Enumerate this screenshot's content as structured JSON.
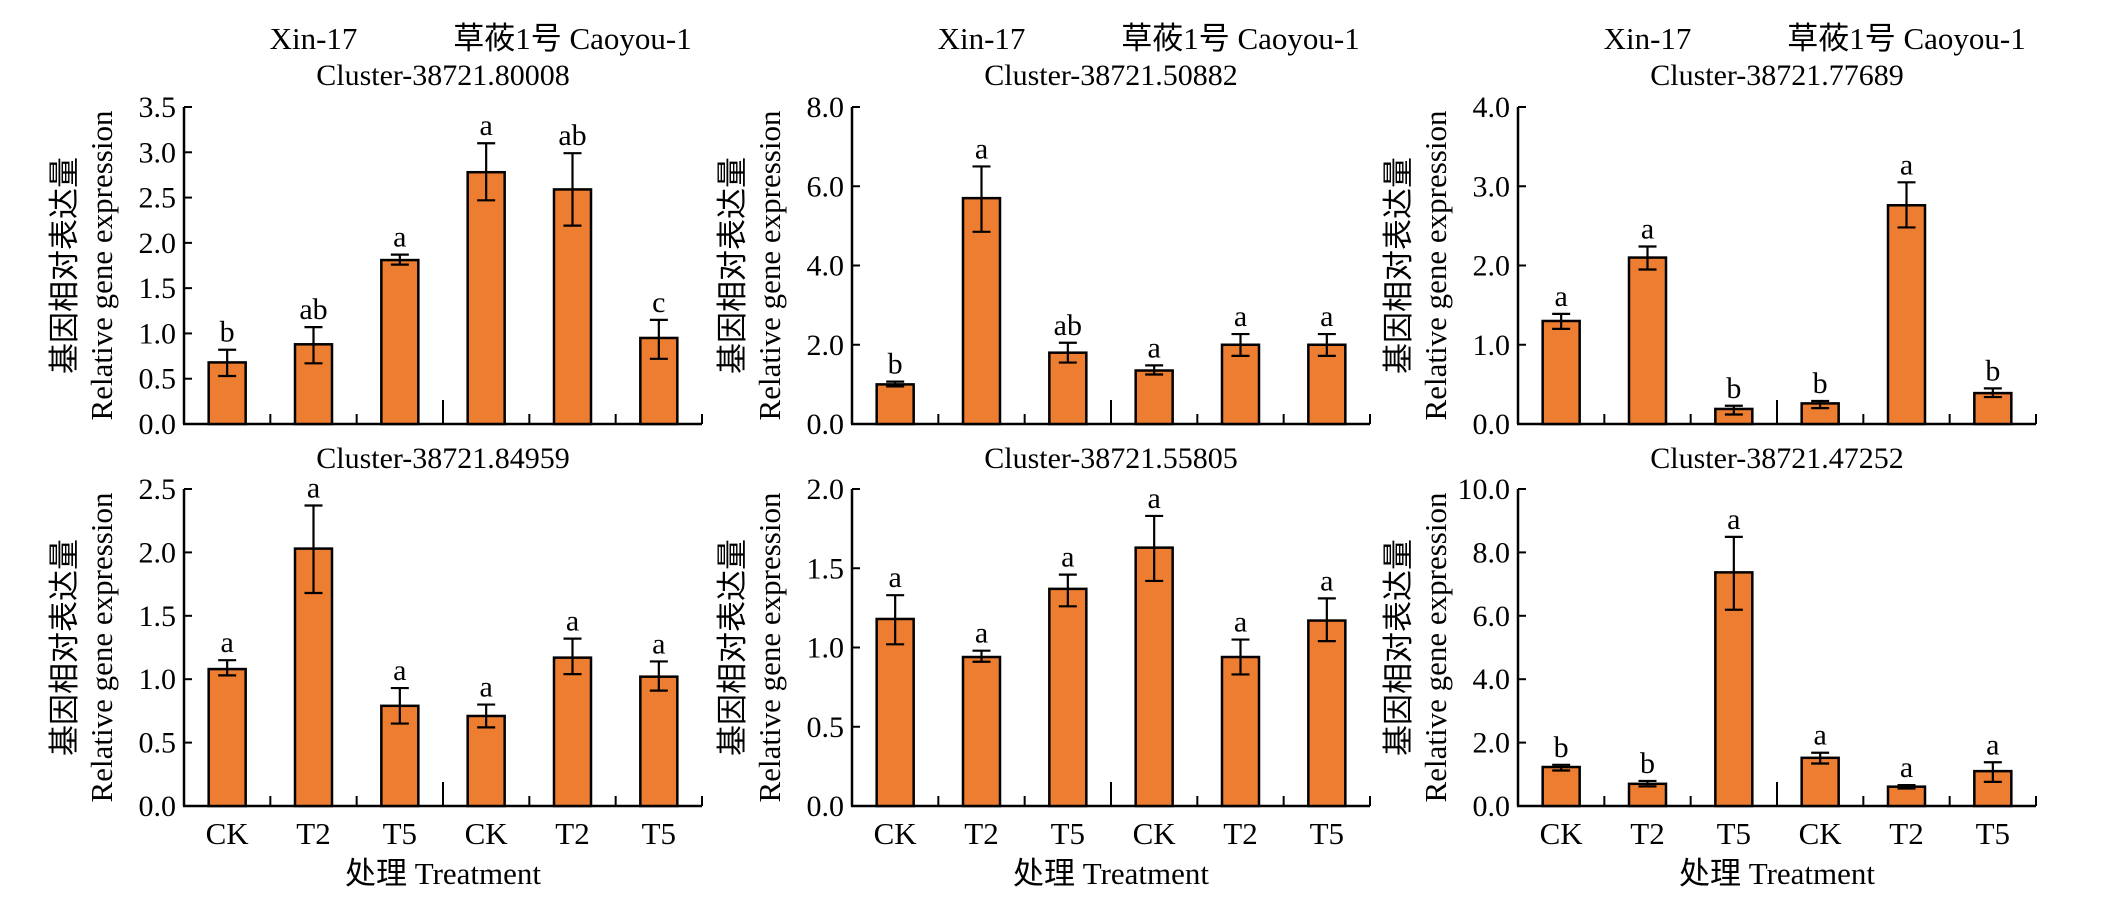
{
  "figure": {
    "group_labels": [
      "Xin-17",
      "草莜1号 Caoyou-1"
    ],
    "x_axis_title": "处理 Treatment",
    "y_axis_title_cn": "基因相对表达量",
    "y_axis_title_en": "Relative gene expression",
    "bar_color": "#ED7D31",
    "edge_color": "#000000"
  },
  "chart_data": [
    {
      "type": "bar",
      "title": "Cluster-38721.80008",
      "categories": [
        "CK",
        "T2",
        "T5",
        "CK",
        "T2",
        "T5"
      ],
      "groups": [
        "Xin-17",
        "草莜1号 Caoyou-1"
      ],
      "values": [
        0.68,
        0.88,
        1.81,
        2.78,
        2.59,
        0.95
      ],
      "error_upper": [
        0.82,
        1.07,
        1.87,
        3.1,
        2.99,
        1.15
      ],
      "error_lower": [
        0.53,
        0.67,
        1.76,
        2.47,
        2.19,
        0.72
      ],
      "significance": [
        "b",
        "ab",
        "a",
        "a",
        "ab",
        "c"
      ],
      "yticks": [
        "0.0",
        "0.5",
        "1.0",
        "1.5",
        "2.0",
        "2.5",
        "3.0",
        "3.5"
      ],
      "ylim": [
        0,
        3.5
      ],
      "xlabel": "",
      "ylabel": "基因相对表达量 Relative gene expression"
    },
    {
      "type": "bar",
      "title": "Cluster-38721.50882",
      "categories": [
        "CK",
        "T2",
        "T5",
        "CK",
        "T2",
        "T5"
      ],
      "groups": [
        "Xin-17",
        "草莜1号 Caoyou-1"
      ],
      "values": [
        1.0,
        5.7,
        1.8,
        1.35,
        2.0,
        2.0
      ],
      "error_upper": [
        1.07,
        6.5,
        2.05,
        1.48,
        2.27,
        2.27
      ],
      "error_lower": [
        0.95,
        4.85,
        1.55,
        1.25,
        1.72,
        1.72
      ],
      "significance": [
        "b",
        "a",
        "ab",
        "a",
        "a",
        "a"
      ],
      "yticks": [
        "0.0",
        "2.0",
        "4.0",
        "6.0",
        "8.0"
      ],
      "ylim": [
        0,
        8.0
      ],
      "xlabel": "",
      "ylabel": "基因相对表达量 Relative gene expression"
    },
    {
      "type": "bar",
      "title": "Cluster-38721.77689",
      "categories": [
        "CK",
        "T2",
        "T5",
        "CK",
        "T2",
        "T5"
      ],
      "groups": [
        "Xin-17",
        "草莜1号 Caoyou-1"
      ],
      "values": [
        1.3,
        2.1,
        0.19,
        0.26,
        2.76,
        0.39
      ],
      "error_upper": [
        1.39,
        2.24,
        0.23,
        0.29,
        3.05,
        0.45
      ],
      "error_lower": [
        1.2,
        1.95,
        0.12,
        0.2,
        2.48,
        0.34
      ],
      "significance": [
        "a",
        "a",
        "b",
        "b",
        "a",
        "b"
      ],
      "yticks": [
        "0.0",
        "1.0",
        "2.0",
        "3.0",
        "4.0"
      ],
      "ylim": [
        0,
        4.0
      ],
      "xlabel": "",
      "ylabel": "基因相对表达量 Relative gene expression"
    },
    {
      "type": "bar",
      "title": "Cluster-38721.84959",
      "categories": [
        "CK",
        "T2",
        "T5",
        "CK",
        "T2",
        "T5"
      ],
      "groups": [
        "Xin-17",
        "草莜1号 Caoyou-1"
      ],
      "values": [
        1.08,
        2.03,
        0.79,
        0.71,
        1.17,
        1.02
      ],
      "error_upper": [
        1.15,
        2.37,
        0.93,
        0.8,
        1.32,
        1.14
      ],
      "error_lower": [
        1.03,
        1.68,
        0.65,
        0.62,
        1.04,
        0.91
      ],
      "significance": [
        "a",
        "a",
        "a",
        "a",
        "a",
        "a"
      ],
      "yticks": [
        "0.0",
        "0.5",
        "1.0",
        "1.5",
        "2.0",
        "2.5"
      ],
      "ylim": [
        0,
        2.5
      ],
      "xlabel": "处理 Treatment",
      "ylabel": "基因相对表达量 Relative gene expression"
    },
    {
      "type": "bar",
      "title": "Cluster-38721.55805",
      "categories": [
        "CK",
        "T2",
        "T5",
        "CK",
        "T2",
        "T5"
      ],
      "groups": [
        "Xin-17",
        "草莜1号 Caoyou-1"
      ],
      "values": [
        1.18,
        0.94,
        1.37,
        1.63,
        0.94,
        1.17
      ],
      "error_upper": [
        1.33,
        0.98,
        1.46,
        1.83,
        1.05,
        1.31
      ],
      "error_lower": [
        1.02,
        0.91,
        1.26,
        1.42,
        0.83,
        1.04
      ],
      "significance": [
        "a",
        "a",
        "a",
        "a",
        "a",
        "a"
      ],
      "yticks": [
        "0.0",
        "0.5",
        "1.0",
        "1.5",
        "2.0"
      ],
      "ylim": [
        0,
        2.0
      ],
      "xlabel": "处理 Treatment",
      "ylabel": "基因相对表达量 Relative gene expression"
    },
    {
      "type": "bar",
      "title": "Cluster-38721.47252",
      "categories": [
        "CK",
        "T2",
        "T5",
        "CK",
        "T2",
        "T5"
      ],
      "groups": [
        "Xin-17",
        "草莜1号 Caoyou-1"
      ],
      "values": [
        1.23,
        0.7,
        7.37,
        1.52,
        0.61,
        1.1
      ],
      "error_upper": [
        1.3,
        0.79,
        8.49,
        1.68,
        0.66,
        1.38
      ],
      "error_lower": [
        1.12,
        0.62,
        6.19,
        1.34,
        0.55,
        0.76
      ],
      "significance": [
        "b",
        "b",
        "a",
        "a",
        "a",
        "a"
      ],
      "yticks": [
        "0.0",
        "2.0",
        "4.0",
        "6.0",
        "8.0",
        "10.0"
      ],
      "ylim": [
        0,
        10.0
      ],
      "xlabel": "处理 Treatment",
      "ylabel": "基因相对表达量 Relative gene expression"
    }
  ]
}
